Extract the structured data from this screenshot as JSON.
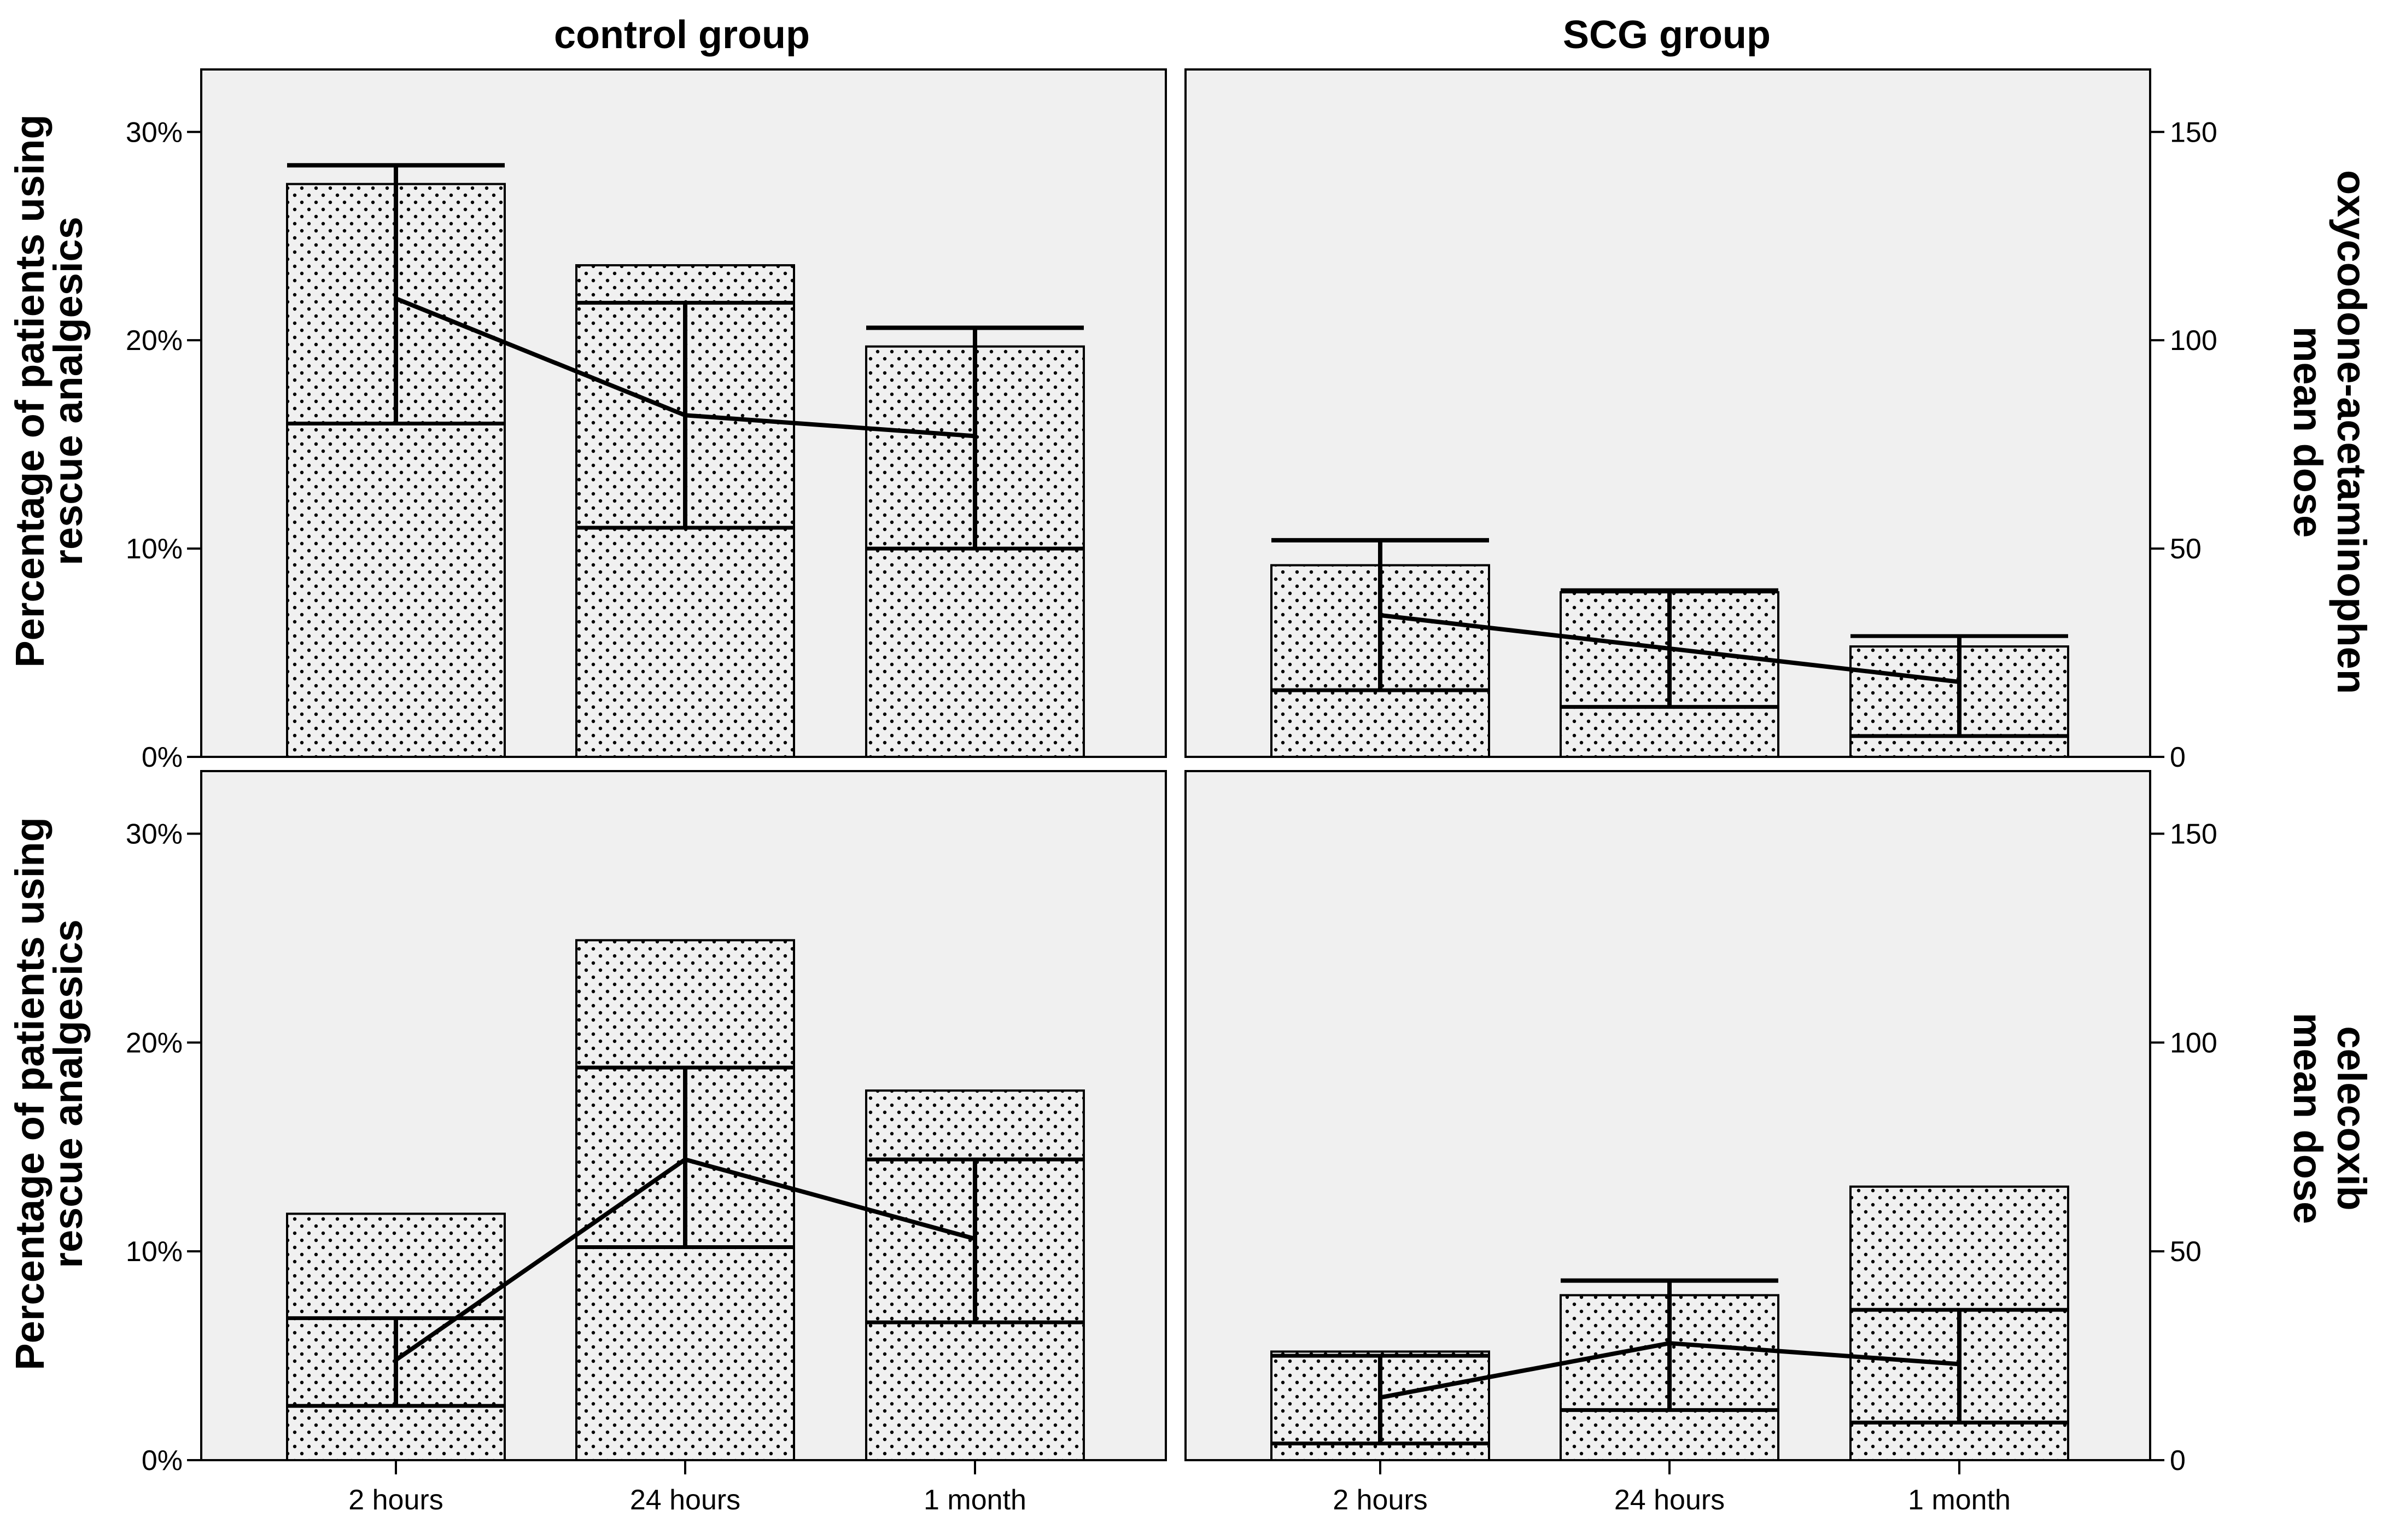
{
  "chart_data": {
    "type": "bar",
    "layout": "2x2 panel grid with bars (percentage, left axis) and mean-dose line with error bars (right axis)",
    "columns": [
      "control group",
      "SCG group"
    ],
    "rows": [
      "oxycodone-acetaminophen",
      "celecoxib"
    ],
    "categories": [
      "2 hours",
      "24 hours",
      "1 month"
    ],
    "left_axis": {
      "label": [
        "Percentage of patients using",
        "rescue analgesics"
      ],
      "ylim": [
        0,
        33
      ],
      "ticks": [
        0,
        10,
        20,
        30
      ],
      "tick_labels": [
        "0%",
        "10%",
        "20%",
        "30%"
      ]
    },
    "right_axis": {
      "ylim": [
        0,
        165
      ],
      "ticks": [
        0,
        50,
        100,
        150
      ],
      "tick_labels": [
        "0",
        "50",
        "100",
        "150"
      ],
      "row_labels": [
        [
          "oxycodone-acetaminophen",
          "mean dose"
        ],
        [
          "celecoxib",
          "mean dose"
        ]
      ]
    },
    "panels": [
      {
        "row": "oxycodone-acetaminophen",
        "column": "control group",
        "bars_percent": [
          27.5,
          23.6,
          19.7
        ],
        "mean_dose": [
          110,
          82,
          77
        ],
        "dose_error_low": [
          80,
          55,
          50
        ],
        "dose_error_high": [
          142,
          109,
          103
        ],
        "dose_band_low": [
          80,
          55,
          50
        ],
        "dose_band_high": [
          null,
          109,
          null
        ]
      },
      {
        "row": "oxycodone-acetaminophen",
        "column": "SCG group",
        "bars_percent": [
          9.2,
          7.9,
          5.3
        ],
        "mean_dose": [
          34,
          26,
          18
        ],
        "dose_error_low": [
          16,
          12,
          5
        ],
        "dose_error_high": [
          52,
          40,
          29
        ],
        "dose_band_low": [
          16,
          12,
          5
        ],
        "dose_band_high": [
          null,
          40,
          29
        ]
      },
      {
        "row": "celecoxib",
        "column": "control group",
        "bars_percent": [
          11.8,
          24.9,
          17.7
        ],
        "mean_dose": [
          24,
          72,
          53
        ],
        "dose_error_low": [
          13,
          51,
          33
        ],
        "dose_error_high": [
          34,
          94,
          72
        ],
        "dose_band_low": [
          13,
          51,
          33
        ],
        "dose_band_high": [
          34,
          94,
          72
        ]
      },
      {
        "row": "celecoxib",
        "column": "SCG group",
        "bars_percent": [
          5.2,
          7.9,
          13.1
        ],
        "mean_dose": [
          15,
          28,
          23
        ],
        "dose_error_low": [
          4,
          12,
          9
        ],
        "dose_error_high": [
          25,
          43,
          36
        ],
        "dose_band_low": [
          4,
          12,
          9
        ],
        "dose_band_high": [
          25,
          null,
          36
        ]
      }
    ],
    "colors": {
      "panel_background": "#f0f0f0",
      "bar_fill": "#f0f0f0",
      "dot_pattern": "#000000",
      "lines": "#000000"
    },
    "grid": false
  }
}
